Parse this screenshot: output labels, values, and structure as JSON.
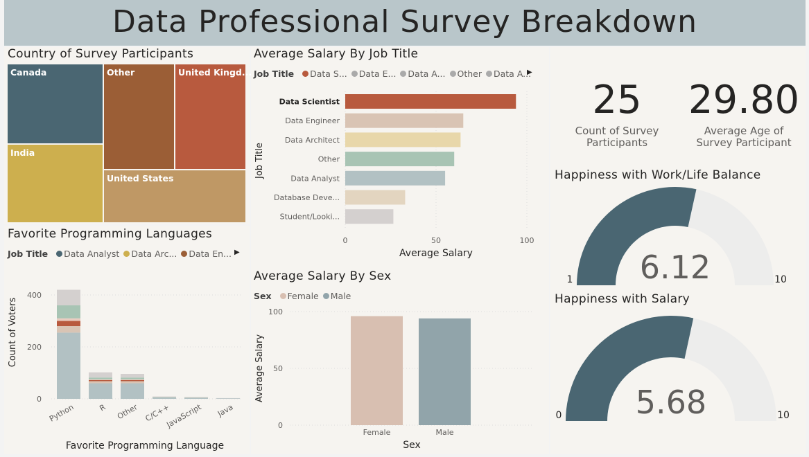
{
  "dashboard": {
    "title": "Data Professional Survey Breakdown"
  },
  "country": {
    "title": "Country of Survey Participants",
    "cells": [
      {
        "label": "Canada",
        "color": "#4a6672"
      },
      {
        "label": "India",
        "color": "#cdaf4e"
      },
      {
        "label": "Other",
        "color": "#9b5e36"
      },
      {
        "label": "United Kingd...",
        "color": "#b85a3e"
      },
      {
        "label": "United States",
        "color": "#bf9865"
      }
    ]
  },
  "languages": {
    "title": "Favorite Programming Languages",
    "legend_title": "Job Title",
    "legend": [
      {
        "label": "Data Analyst",
        "color": "#4a6672"
      },
      {
        "label": "Data Arc...",
        "color": "#cdaf4e"
      },
      {
        "label": "Data En...",
        "color": "#9b5e36"
      }
    ]
  },
  "salary_job": {
    "title": "Average Salary By Job Title",
    "legend_title": "Job Title",
    "legend": [
      {
        "label": "Data S...",
        "color": "#b85a3e"
      },
      {
        "label": "Data E...",
        "color": "#aaaaaa"
      },
      {
        "label": "Data A...",
        "color": "#aaaaaa"
      },
      {
        "label": "Other",
        "color": "#aaaaaa"
      },
      {
        "label": "Data A...",
        "color": "#aaaaaa"
      }
    ]
  },
  "salary_sex": {
    "title": "Average Salary By Sex",
    "legend_title": "Sex",
    "legend": [
      {
        "label": "Female",
        "color": "#d8bfb1"
      },
      {
        "label": "Male",
        "color": "#91a4aa"
      }
    ]
  },
  "cards": {
    "count_value": "25",
    "count_label": "Count of Survey Participants",
    "age_value": "29.80",
    "age_label": "Average Age of Survey Participant"
  },
  "gauges": [
    {
      "title": "Happiness with Work/Life Balance",
      "value": 6.12,
      "display": "6.12",
      "min": 1,
      "max": 10,
      "min_label": "1",
      "max_label": "10"
    },
    {
      "title": "Happiness with Salary",
      "value": 5.68,
      "display": "5.68",
      "min": 0,
      "max": 10,
      "min_label": "0",
      "max_label": "10"
    }
  ],
  "chart_data": [
    {
      "type": "treemap",
      "title": "Country of Survey Participants",
      "categories": [
        "Canada",
        "India",
        "Other",
        "United Kingd...",
        "United States"
      ]
    },
    {
      "type": "bar",
      "title": "Favorite Programming Languages",
      "xlabel": "Favorite Programming Language",
      "ylabel": "Count of Voters",
      "categories": [
        "Python",
        "R",
        "Other",
        "C/C++",
        "JavaScript",
        "Java"
      ],
      "yticks": [
        0,
        200,
        400
      ],
      "ylim": [
        0,
        440
      ],
      "stacked": true,
      "series": [
        {
          "name": "Data Analyst",
          "color": "#b2c1c3",
          "values": [
            255,
            60,
            60,
            6,
            4,
            2
          ]
        },
        {
          "name": "Data Arc...",
          "color": "#d9c4b4",
          "values": [
            25,
            8,
            8,
            1,
            1,
            0
          ]
        },
        {
          "name": "Data En...",
          "color": "#b85a3e",
          "values": [
            20,
            4,
            4,
            0,
            0,
            0
          ]
        },
        {
          "name": "",
          "color": "#e9ccc0",
          "values": [
            10,
            3,
            3,
            0,
            0,
            0
          ]
        },
        {
          "name": "",
          "color": "#a8c4b4",
          "values": [
            50,
            7,
            7,
            1,
            1,
            0
          ]
        },
        {
          "name": "",
          "color": "#d4d0cf",
          "values": [
            60,
            20,
            14,
            1,
            1,
            1
          ]
        }
      ]
    },
    {
      "type": "bar",
      "orientation": "horizontal",
      "title": "Average Salary By Job Title",
      "xlabel": "Average Salary",
      "ylabel": "Job Title",
      "categories": [
        "Data Scientist",
        "Data Engineer",
        "Data Architect",
        "Other",
        "Data Analyst",
        "Database Deve...",
        "Student/Looki..."
      ],
      "values": [
        94,
        65,
        63.5,
        60,
        55,
        33,
        26.5
      ],
      "colors": [
        "#b85a3e",
        "#d9c4b4",
        "#e8d7aa",
        "#a8c4b4",
        "#b2c1c3",
        "#e3d5c0",
        "#d4d0cf"
      ],
      "xticks": [
        0,
        50,
        100
      ],
      "xlim": [
        0,
        100
      ]
    },
    {
      "type": "bar",
      "title": "Average Salary By Sex",
      "xlabel": "Sex",
      "ylabel": "Average Salary",
      "categories": [
        "Female",
        "Male"
      ],
      "values": [
        96,
        94
      ],
      "colors": [
        "#d8bfb1",
        "#91a4aa"
      ],
      "yticks": [
        0,
        50,
        100
      ],
      "ylim": [
        0,
        100
      ]
    }
  ]
}
